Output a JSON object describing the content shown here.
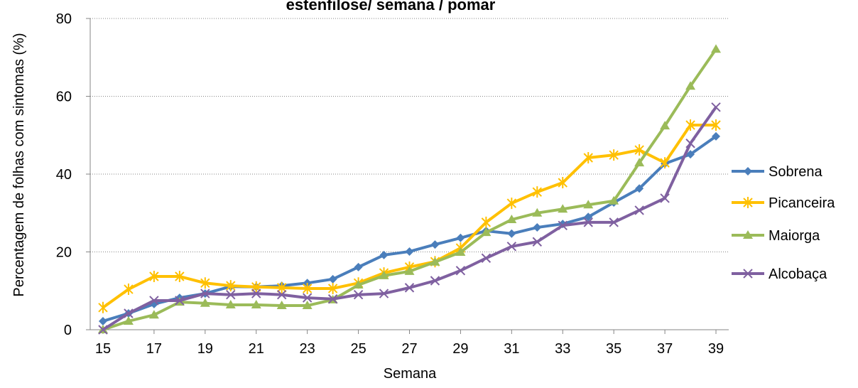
{
  "chart_data": {
    "type": "line",
    "title": "estenfilose/ semana / pomar",
    "xlabel": "Semana",
    "ylabel": "Percentagem de folhas com sintomas (%)",
    "x": [
      15,
      16,
      17,
      18,
      19,
      20,
      21,
      22,
      23,
      24,
      25,
      26,
      27,
      28,
      29,
      30,
      31,
      32,
      33,
      34,
      35,
      36,
      37,
      38,
      39
    ],
    "xlim": [
      14.5,
      39.5
    ],
    "xticks": [
      15,
      17,
      19,
      21,
      23,
      25,
      27,
      29,
      31,
      33,
      35,
      37,
      39
    ],
    "ylim": [
      0,
      80
    ],
    "yticks": [
      0,
      20,
      40,
      60,
      80
    ],
    "grid": true,
    "legend": "right",
    "series": [
      {
        "name": "Sobrena",
        "color": "#4a7ebb",
        "marker": "diamond",
        "values": [
          2.2,
          4.2,
          6.6,
          8.2,
          9.3,
          11.1,
          11,
          11.3,
          12,
          13,
          16.1,
          19.2,
          20.1,
          21.9,
          23.6,
          25.4,
          24.7,
          26.3,
          27.2,
          29,
          32.7,
          36.3,
          42.7,
          45.1,
          49.7
        ]
      },
      {
        "name": "Picanceira",
        "color": "#ffc000",
        "marker": "star",
        "values": [
          5.7,
          10.4,
          13.7,
          13.7,
          12,
          11.3,
          11,
          10.8,
          10.6,
          10.6,
          12,
          14.6,
          16.1,
          17.5,
          21,
          27.6,
          32.5,
          35.4,
          37.8,
          44.2,
          44.9,
          46.2,
          42.9,
          52.6,
          52.6
        ]
      },
      {
        "name": "Maiorga",
        "color": "#9bbb59",
        "marker": "triangle",
        "values": [
          0,
          2.2,
          3.8,
          7.1,
          6.8,
          6.4,
          6.4,
          6.2,
          6.2,
          7.7,
          11.5,
          13.9,
          15,
          17.4,
          19.9,
          25,
          28.3,
          30,
          31,
          32.1,
          33.1,
          42.9,
          52.4,
          62.6,
          72.1
        ]
      },
      {
        "name": "Alcobaça",
        "color": "#7f60a0",
        "marker": "x",
        "values": [
          0,
          4.2,
          7.5,
          7.5,
          9.3,
          9,
          9.3,
          9,
          8.2,
          7.9,
          9,
          9.3,
          10.8,
          12.6,
          15.2,
          18.4,
          21.4,
          22.6,
          26.8,
          27.6,
          27.6,
          30.7,
          33.8,
          47.9,
          57.2
        ]
      }
    ]
  }
}
